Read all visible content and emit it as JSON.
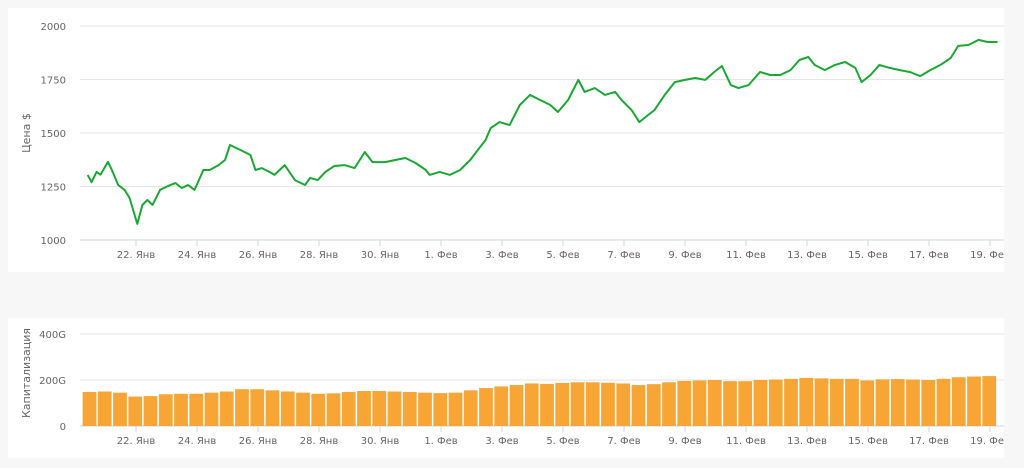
{
  "chart_data": [
    {
      "type": "line",
      "ylabel": "Цена $",
      "ylim": [
        1000,
        2000
      ],
      "yticks": [
        "1000",
        "1250",
        "1500",
        "1750",
        "2000"
      ],
      "grid": true,
      "legend": "none",
      "color": "#1aa834",
      "xticks": [
        {
          "date": "01-22",
          "label": "22. Янв"
        },
        {
          "date": "01-24",
          "label": "24. Янв"
        },
        {
          "date": "01-26",
          "label": "26. Янв"
        },
        {
          "date": "01-28",
          "label": "28. Янв"
        },
        {
          "date": "01-30",
          "label": "30. Янв"
        },
        {
          "date": "02-01",
          "label": "1. Фев"
        },
        {
          "date": "02-03",
          "label": "3. Фев"
        },
        {
          "date": "02-05",
          "label": "5. Фев"
        },
        {
          "date": "02-07",
          "label": "7. Фев"
        },
        {
          "date": "02-09",
          "label": "9. Фев"
        },
        {
          "date": "02-11",
          "label": "11. Фев"
        },
        {
          "date": "02-13",
          "label": "13. Фев"
        },
        {
          "date": "02-15",
          "label": "15. Фев"
        },
        {
          "date": "02-17",
          "label": "17. Фев"
        },
        {
          "date": "02-19",
          "label": "19. Фев"
        }
      ],
      "points": [
        [
          "01-20 10",
          1304
        ],
        [
          "01-20 13",
          1270
        ],
        [
          "01-20 17",
          1318
        ],
        [
          "01-20 20",
          1305
        ],
        [
          "01-21 02",
          1365
        ],
        [
          "01-21 05",
          1327
        ],
        [
          "01-21 10",
          1257
        ],
        [
          "01-21 15",
          1234
        ],
        [
          "01-21 19",
          1196
        ],
        [
          "01-22 01",
          1075
        ],
        [
          "01-22 05",
          1164
        ],
        [
          "01-22 09",
          1187
        ],
        [
          "01-22 13",
          1164
        ],
        [
          "01-22 19",
          1234
        ],
        [
          "01-23 01",
          1252
        ],
        [
          "01-23 07",
          1266
        ],
        [
          "01-23 12",
          1243
        ],
        [
          "01-23 17",
          1257
        ],
        [
          "01-23 22",
          1234
        ],
        [
          "01-24 05",
          1327
        ],
        [
          "01-24 10",
          1327
        ],
        [
          "01-24 17",
          1350
        ],
        [
          "01-24 22",
          1374
        ],
        [
          "01-25 02",
          1444
        ],
        [
          "01-25 10",
          1421
        ],
        [
          "01-25 18",
          1397
        ],
        [
          "01-25 22",
          1327
        ],
        [
          "01-26 03",
          1336
        ],
        [
          "01-26 09",
          1318
        ],
        [
          "01-26 13",
          1304
        ],
        [
          "01-26 21",
          1350
        ],
        [
          "01-27 05",
          1280
        ],
        [
          "01-27 13",
          1257
        ],
        [
          "01-27 17",
          1290
        ],
        [
          "01-27 23",
          1280
        ],
        [
          "01-28 05",
          1318
        ],
        [
          "01-28 12",
          1346
        ],
        [
          "01-28 20",
          1350
        ],
        [
          "01-29 04",
          1336
        ],
        [
          "01-29 12",
          1411
        ],
        [
          "01-29 18",
          1364
        ],
        [
          "01-30 04",
          1364
        ],
        [
          "01-30 12",
          1374
        ],
        [
          "01-30 20",
          1383
        ],
        [
          "01-31 04",
          1360
        ],
        [
          "01-31 12",
          1327
        ],
        [
          "01-31 15",
          1304
        ],
        [
          "01-31 23",
          1318
        ],
        [
          "02-01 07",
          1304
        ],
        [
          "02-01 15",
          1327
        ],
        [
          "02-01 23",
          1374
        ],
        [
          "02-02 05",
          1421
        ],
        [
          "02-02 11",
          1467
        ],
        [
          "02-02 15",
          1523
        ],
        [
          "02-02 22",
          1551
        ],
        [
          "02-03 06",
          1537
        ],
        [
          "02-03 14",
          1631
        ],
        [
          "02-03 22",
          1678
        ],
        [
          "02-04 06",
          1654
        ],
        [
          "02-04 14",
          1631
        ],
        [
          "02-04 20",
          1598
        ],
        [
          "02-05 04",
          1654
        ],
        [
          "02-05 12",
          1748
        ],
        [
          "02-05 17",
          1692
        ],
        [
          "02-06 01",
          1710
        ],
        [
          "02-06 09",
          1678
        ],
        [
          "02-06 17",
          1692
        ],
        [
          "02-06 22",
          1654
        ],
        [
          "02-07 06",
          1607
        ],
        [
          "02-07 12",
          1551
        ],
        [
          "02-07 19",
          1584
        ],
        [
          "02-08 00",
          1607
        ],
        [
          "02-08 08",
          1678
        ],
        [
          "02-08 16",
          1738
        ],
        [
          "02-09 00",
          1748
        ],
        [
          "02-09 08",
          1757
        ],
        [
          "02-09 16",
          1748
        ],
        [
          "02-09 23",
          1785
        ],
        [
          "02-10 05",
          1813
        ],
        [
          "02-10 12",
          1724
        ],
        [
          "02-10 18",
          1710
        ],
        [
          "02-11 02",
          1724
        ],
        [
          "02-11 11",
          1785
        ],
        [
          "02-11 19",
          1771
        ],
        [
          "02-12 03",
          1771
        ],
        [
          "02-12 11",
          1794
        ],
        [
          "02-12 18",
          1841
        ],
        [
          "02-13 01",
          1855
        ],
        [
          "02-13 06",
          1818
        ],
        [
          "02-13 14",
          1794
        ],
        [
          "02-13 22",
          1818
        ],
        [
          "02-14 06",
          1832
        ],
        [
          "02-14 14",
          1804
        ],
        [
          "02-14 19",
          1738
        ],
        [
          "02-15 02",
          1771
        ],
        [
          "02-15 09",
          1818
        ],
        [
          "02-15 17",
          1804
        ],
        [
          "02-16 01",
          1794
        ],
        [
          "02-16 09",
          1785
        ],
        [
          "02-16 17",
          1766
        ],
        [
          "02-17 01",
          1794
        ],
        [
          "02-17 09",
          1818
        ],
        [
          "02-17 17",
          1850
        ],
        [
          "02-17 23",
          1907
        ],
        [
          "02-18 07",
          1911
        ],
        [
          "02-18 15",
          1935
        ],
        [
          "02-18 22",
          1925
        ],
        [
          "02-19 06",
          1925
        ]
      ]
    },
    {
      "type": "bar",
      "ylabel": "Капитализация",
      "ylim": [
        0,
        400
      ],
      "unit": "G",
      "yticks": [
        "0",
        "200G",
        "400G"
      ],
      "grid": true,
      "legend": "none",
      "color": "#f7a535",
      "bars": [
        [
          "01-20 12",
          148
        ],
        [
          "01-21 00",
          150
        ],
        [
          "01-21 12",
          145
        ],
        [
          "01-22 00",
          128
        ],
        [
          "01-22 12",
          130
        ],
        [
          "01-23 00",
          138
        ],
        [
          "01-23 12",
          140
        ],
        [
          "01-24 00",
          140
        ],
        [
          "01-24 12",
          145
        ],
        [
          "01-25 00",
          150
        ],
        [
          "01-25 12",
          160
        ],
        [
          "01-26 00",
          160
        ],
        [
          "01-26 12",
          155
        ],
        [
          "01-27 00",
          150
        ],
        [
          "01-27 12",
          145
        ],
        [
          "01-28 00",
          140
        ],
        [
          "01-28 12",
          142
        ],
        [
          "01-29 00",
          148
        ],
        [
          "01-29 12",
          152
        ],
        [
          "01-30 00",
          152
        ],
        [
          "01-30 12",
          150
        ],
        [
          "01-31 00",
          148
        ],
        [
          "01-31 12",
          145
        ],
        [
          "02-01 00",
          143
        ],
        [
          "02-01 12",
          145
        ],
        [
          "02-02 00",
          155
        ],
        [
          "02-02 12",
          165
        ],
        [
          "02-03 00",
          172
        ],
        [
          "02-03 12",
          178
        ],
        [
          "02-04 00",
          185
        ],
        [
          "02-04 12",
          183
        ],
        [
          "02-05 00",
          187
        ],
        [
          "02-05 12",
          190
        ],
        [
          "02-06 00",
          190
        ],
        [
          "02-06 12",
          188
        ],
        [
          "02-07 00",
          185
        ],
        [
          "02-07 12",
          178
        ],
        [
          "02-08 00",
          182
        ],
        [
          "02-08 12",
          190
        ],
        [
          "02-09 00",
          196
        ],
        [
          "02-09 12",
          198
        ],
        [
          "02-10 00",
          200
        ],
        [
          "02-10 12",
          195
        ],
        [
          "02-11 00",
          195
        ],
        [
          "02-11 12",
          200
        ],
        [
          "02-12 00",
          202
        ],
        [
          "02-12 12",
          205
        ],
        [
          "02-13 00",
          209
        ],
        [
          "02-13 12",
          207
        ],
        [
          "02-14 00",
          205
        ],
        [
          "02-14 12",
          205
        ],
        [
          "02-15 00",
          198
        ],
        [
          "02-15 12",
          203
        ],
        [
          "02-16 00",
          204
        ],
        [
          "02-16 12",
          202
        ],
        [
          "02-17 00",
          200
        ],
        [
          "02-17 12",
          205
        ],
        [
          "02-18 00",
          212
        ],
        [
          "02-18 12",
          215
        ],
        [
          "02-19 00",
          217
        ]
      ]
    }
  ]
}
